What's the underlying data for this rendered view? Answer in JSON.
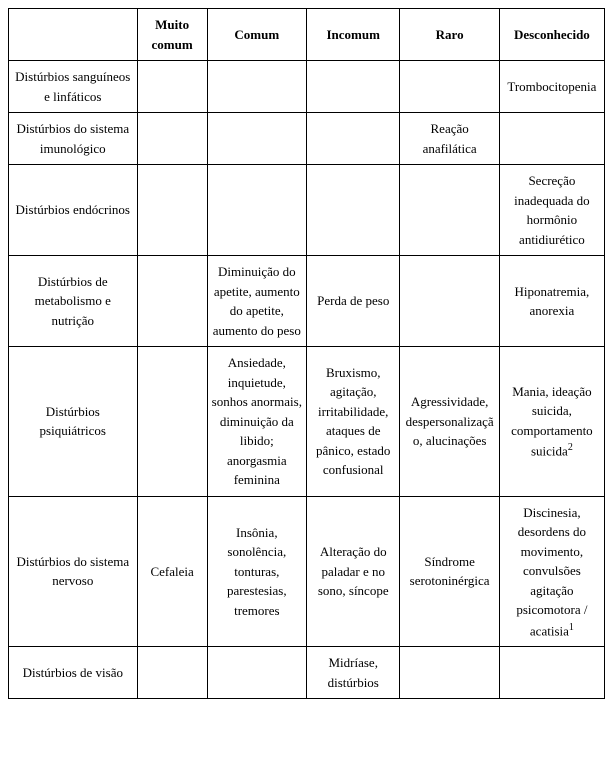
{
  "table": {
    "columns": [
      "",
      "Muito comum",
      "Comum",
      "Incomum",
      "Raro",
      "Desconhecido"
    ],
    "col_widths_pct": [
      22,
      12,
      17,
      16,
      17,
      18
    ],
    "border_color": "#000000",
    "background_color": "#ffffff",
    "font_family": "Times New Roman",
    "font_size_pt": 10,
    "header_font_weight": "bold",
    "text_align": "center",
    "rows": [
      {
        "label": "Distúrbios sanguíneos e linfáticos",
        "muito_comum": "",
        "comum": "",
        "incomum": "",
        "raro": "",
        "desconhecido": "Trombocitopenia"
      },
      {
        "label": "Distúrbios do sistema imunológico",
        "muito_comum": "",
        "comum": "",
        "incomum": "",
        "raro": "Reação anafilática",
        "desconhecido": ""
      },
      {
        "label": "Distúrbios endócrinos",
        "muito_comum": "",
        "comum": "",
        "incomum": "",
        "raro": "",
        "desconhecido": "Secreção inadequada do hormônio antidiurético"
      },
      {
        "label": "Distúrbios de metabolismo e nutrição",
        "muito_comum": "",
        "comum": "Diminuição do apetite, aumento do apetite, aumento do peso",
        "incomum": "Perda de peso",
        "raro": "",
        "desconhecido": "Hiponatremia, anorexia"
      },
      {
        "label": "Distúrbios psiquiátricos",
        "muito_comum": "",
        "comum": "Ansiedade, inquietude, sonhos anormais, diminuição da libido; anorgasmia feminina",
        "incomum": "Bruxismo, agitação, irritabilidade, ataques de pânico, estado confusional",
        "raro": "Agressividade, despersonalização, alucinações",
        "desconhecido": "Mania, ideação suicida, comportamento suicida",
        "desconhecido_sup": "2"
      },
      {
        "label": "Distúrbios do sistema nervoso",
        "muito_comum": "Cefaleia",
        "comum": "Insônia, sonolência, tonturas, parestesias, tremores",
        "incomum": "Alteração do paladar e no sono, síncope",
        "raro": "Síndrome serotoninérgica",
        "desconhecido": "Discinesia, desordens do movimento, convulsões agitação psicomotora / acatisia",
        "desconhecido_sup": "1"
      },
      {
        "label": "Distúrbios de visão",
        "muito_comum": "",
        "comum": "",
        "incomum": "Midríase, distúrbios",
        "raro": "",
        "desconhecido": ""
      }
    ]
  }
}
